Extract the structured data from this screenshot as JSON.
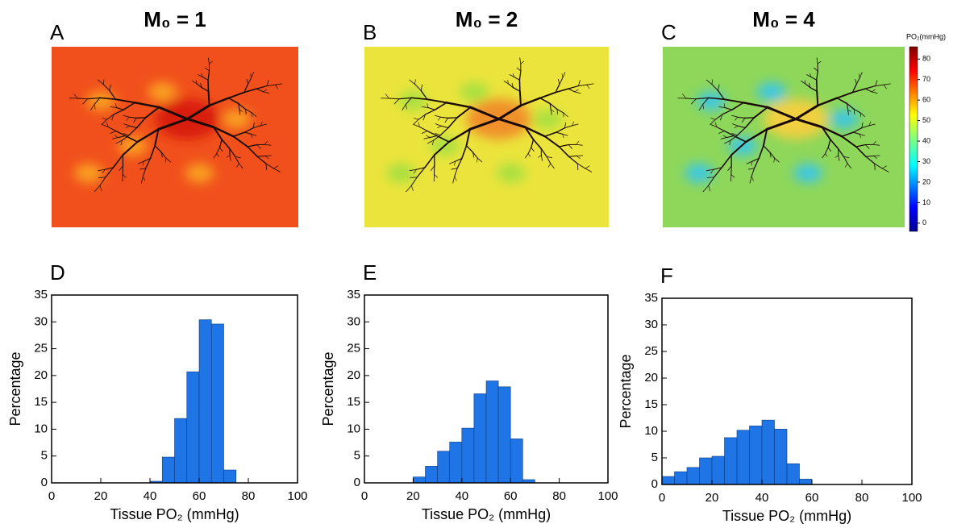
{
  "chart_data": [
    {
      "type": "heatmap",
      "panel": "A",
      "title": "M₀ = 1",
      "color": "#f1501c"
    },
    {
      "type": "heatmap",
      "panel": "B",
      "title": "M₀ = 2",
      "color": "#ebe43c"
    },
    {
      "type": "heatmap",
      "panel": "C",
      "title": "M₀ = 4",
      "color": "#8ed75a",
      "colorbar": {
        "label": "PO₂(mmHg)",
        "lim": [
          -4,
          86
        ],
        "ticks": [
          0,
          10,
          20,
          30,
          40,
          50,
          60,
          70,
          80
        ]
      }
    },
    {
      "type": "histogram",
      "panel": "D",
      "color": "#1f74e6",
      "bins": [
        40,
        45,
        50,
        55,
        60,
        65,
        70,
        75
      ],
      "counts": [
        0.3,
        4.8,
        12,
        20.7,
        30.4,
        29.6,
        2.4
      ],
      "xlim": [
        0,
        100
      ],
      "xticks": [
        0,
        20,
        40,
        60,
        80,
        100
      ],
      "ylim": [
        0,
        35
      ],
      "yticks": [
        0,
        5,
        10,
        15,
        20,
        25,
        30,
        35
      ],
      "xlabel": "Tissue PO₂ (mmHg)",
      "ylabel": "Percentage"
    },
    {
      "type": "histogram",
      "panel": "E",
      "color": "#1f74e6",
      "bins": [
        20,
        25,
        30,
        35,
        40,
        45,
        50,
        55,
        60,
        65,
        70
      ],
      "counts": [
        1.1,
        3.1,
        5.9,
        7.6,
        10.2,
        16.6,
        19.0,
        17.9,
        8.2,
        0.6
      ],
      "xlim": [
        0,
        100
      ],
      "xticks": [
        0,
        20,
        40,
        60,
        80,
        100
      ],
      "ylim": [
        0,
        35
      ],
      "yticks": [
        0,
        5,
        10,
        15,
        20,
        25,
        30,
        35
      ],
      "xlabel": "Tissue PO₂ (mmHg)",
      "ylabel": "Percentage"
    },
    {
      "type": "histogram",
      "panel": "F",
      "color": "#1f74e6",
      "bins": [
        0,
        5,
        10,
        15,
        20,
        25,
        30,
        35,
        40,
        45,
        50,
        55,
        60
      ],
      "counts": [
        1.5,
        2.4,
        3.2,
        5.0,
        5.3,
        8.8,
        10.2,
        11.0,
        12.1,
        10.4,
        3.9,
        1.0
      ],
      "xlim": [
        0,
        100
      ],
      "xticks": [
        0,
        20,
        40,
        60,
        80,
        100
      ],
      "ylim": [
        0,
        35
      ],
      "yticks": [
        0,
        5,
        10,
        15,
        20,
        25,
        30,
        35
      ],
      "xlabel": "Tissue PO₂ (mmHg)",
      "ylabel": "Percentage"
    }
  ]
}
